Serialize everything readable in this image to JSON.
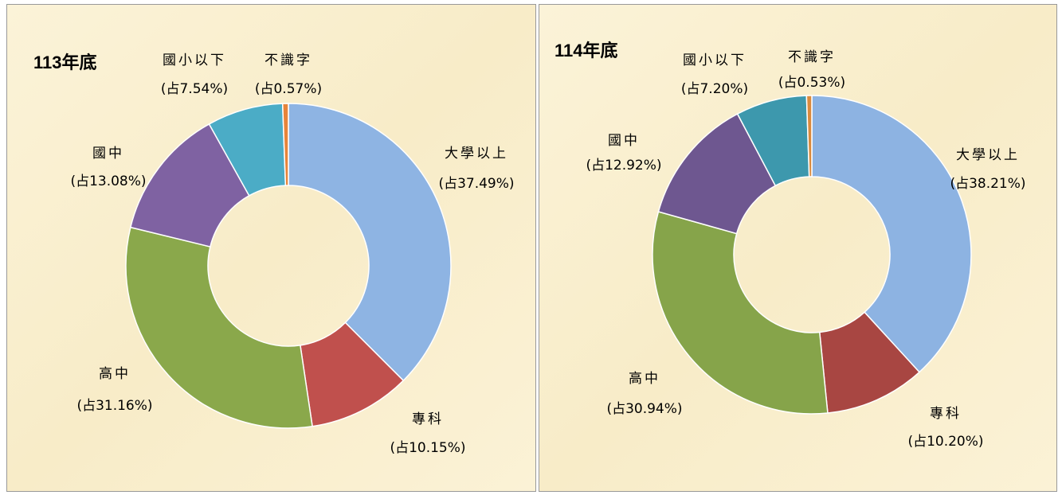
{
  "chart_data": [
    {
      "type": "donut",
      "title": "113年底",
      "categories": [
        "大學以上",
        "專科",
        "高中",
        "國中",
        "國小以下",
        "不識字"
      ],
      "values": [
        37.49,
        10.15,
        31.16,
        13.08,
        7.54,
        0.57
      ],
      "value_labels": [
        "(占37.49%)",
        "(占10.15%)",
        "(占31.16%)",
        "(占13.08%)",
        "(占7.54%)",
        "(占0.57%)"
      ],
      "colors": [
        "#8eb4e3",
        "#c0504d",
        "#8aa84b",
        "#7f62a2",
        "#4bacc6",
        "#e7843a"
      ]
    },
    {
      "type": "donut",
      "title": "114年底",
      "categories": [
        "大學以上",
        "專科",
        "高中",
        "國中",
        "國小以下",
        "不識字"
      ],
      "values": [
        38.21,
        10.2,
        30.94,
        12.92,
        7.2,
        0.53
      ],
      "value_labels": [
        "(占38.21%)",
        "(占10.20%)",
        "(占30.94%)",
        "(占12.92%)",
        "(占7.20%)",
        "(占0.53%)"
      ],
      "colors": [
        "#8db3e2",
        "#a84642",
        "#86a44a",
        "#6e5790",
        "#3d98ad",
        "#d98a3e"
      ]
    }
  ]
}
